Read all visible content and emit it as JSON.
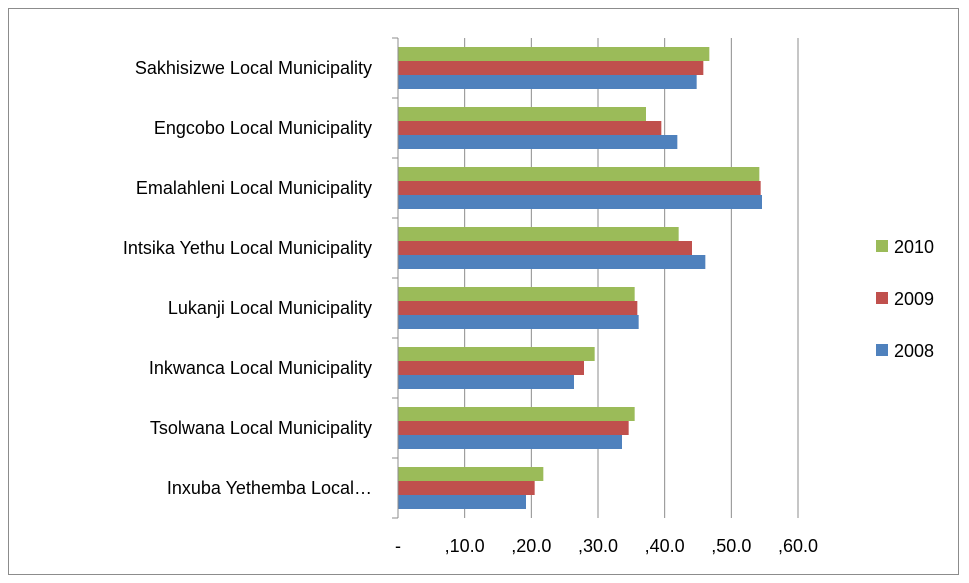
{
  "chart_data": {
    "type": "bar",
    "orientation": "horizontal",
    "categories": [
      "Sakhisizwe Local Municipality",
      "Engcobo Local Municipality",
      "Emalahleni Local Municipality",
      "Intsika Yethu Local Municipality",
      "Lukanji Local Municipality",
      "Inkwanca Local Municipality",
      "Tsolwana Local Municipality",
      "Inxuba Yethemba Local…"
    ],
    "series": [
      {
        "name": "2010",
        "color": "#9BBB59",
        "values": [
          46.7,
          37.2,
          54.2,
          42.1,
          35.5,
          29.5,
          35.5,
          21.8
        ]
      },
      {
        "name": "2009",
        "color": "#C0504D",
        "values": [
          45.8,
          39.5,
          54.4,
          44.1,
          35.9,
          27.9,
          34.6,
          20.5
        ]
      },
      {
        "name": "2008",
        "color": "#4F81BD",
        "values": [
          44.8,
          41.9,
          54.6,
          46.1,
          36.1,
          26.4,
          33.6,
          19.2
        ]
      }
    ],
    "xlim": [
      0,
      60
    ],
    "xticks": [
      0,
      10,
      20,
      30,
      40,
      50,
      60
    ],
    "xtick_labels": [
      "-",
      ",10.0",
      ",20.0",
      ",30.0",
      ",40.0",
      ",50.0",
      ",60.0"
    ],
    "legend": {
      "position": "right",
      "order": [
        "2010",
        "2009",
        "2008"
      ]
    },
    "grid": true,
    "title": "",
    "xlabel": "",
    "ylabel": ""
  }
}
